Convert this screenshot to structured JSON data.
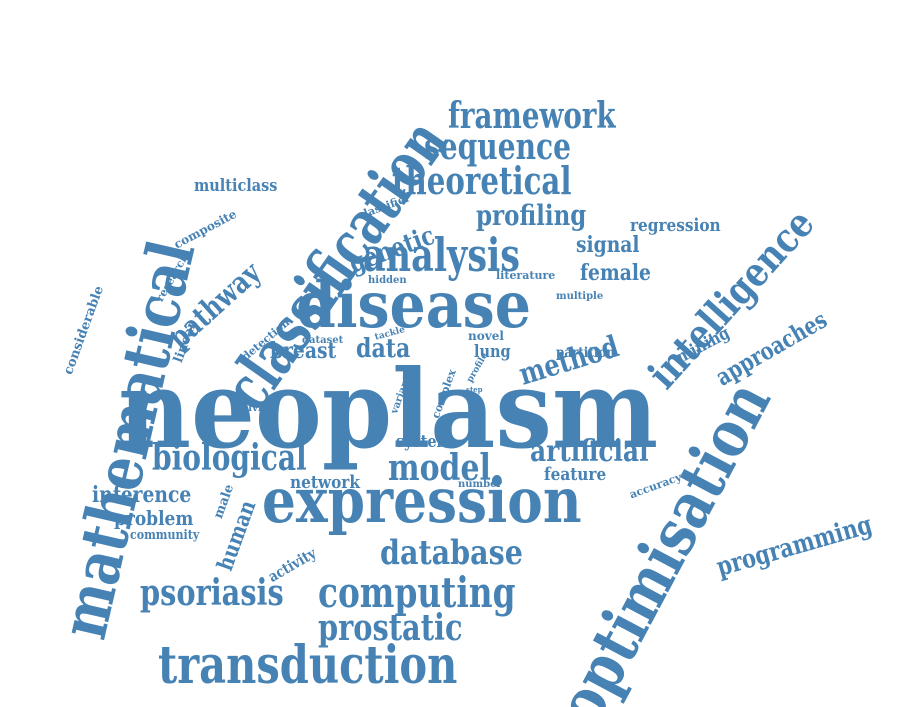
{
  "accent_color": "#4682b4",
  "words": [
    {
      "id": "neoplasm",
      "text": "neoplasm"
    },
    {
      "id": "expression",
      "text": "expression"
    },
    {
      "id": "classification",
      "text": "classification"
    },
    {
      "id": "mathematical",
      "text": "mathematical"
    },
    {
      "id": "optimisation",
      "text": "optimisation"
    },
    {
      "id": "disease",
      "text": "disease"
    },
    {
      "id": "transduction",
      "text": "transduction"
    },
    {
      "id": "intelligence",
      "text": "intelligence"
    },
    {
      "id": "analysis",
      "text": "analysis"
    },
    {
      "id": "theoretical",
      "text": "theoretical"
    },
    {
      "id": "framework",
      "text": "framework"
    },
    {
      "id": "sequence",
      "text": "sequence"
    },
    {
      "id": "computing",
      "text": "computing"
    },
    {
      "id": "psoriasis",
      "text": "psoriasis"
    },
    {
      "id": "prostatic",
      "text": "prostatic"
    },
    {
      "id": "database",
      "text": "database"
    },
    {
      "id": "biological",
      "text": "biological"
    },
    {
      "id": "model",
      "text": "model"
    },
    {
      "id": "artificial",
      "text": "artificial"
    },
    {
      "id": "method",
      "text": "method"
    },
    {
      "id": "profiling",
      "text": "profiling"
    },
    {
      "id": "genetic",
      "text": "genetic"
    },
    {
      "id": "pathway",
      "text": "pathway"
    },
    {
      "id": "programming",
      "text": "programming"
    },
    {
      "id": "approaches",
      "text": "approaches"
    },
    {
      "id": "female",
      "text": "female"
    },
    {
      "id": "signal",
      "text": "signal"
    },
    {
      "id": "regression",
      "text": "regression"
    },
    {
      "id": "multiclass",
      "text": "multiclass"
    },
    {
      "id": "breast",
      "text": "breast"
    },
    {
      "id": "data",
      "text": "data"
    },
    {
      "id": "lung",
      "text": "lung"
    },
    {
      "id": "system",
      "text": "system"
    },
    {
      "id": "network",
      "text": "network"
    },
    {
      "id": "feature",
      "text": "feature"
    },
    {
      "id": "inference",
      "text": "inference"
    },
    {
      "id": "problem",
      "text": "problem"
    },
    {
      "id": "human",
      "text": "human"
    },
    {
      "id": "community",
      "text": "community"
    },
    {
      "id": "male",
      "text": "male"
    },
    {
      "id": "activity",
      "text": "activity"
    },
    {
      "id": "mining",
      "text": "mining"
    },
    {
      "id": "partition",
      "text": "partition"
    },
    {
      "id": "composite",
      "text": "composite"
    },
    {
      "id": "research",
      "text": "research"
    },
    {
      "id": "considerable",
      "text": "considerable"
    },
    {
      "id": "linear",
      "text": "linear"
    },
    {
      "id": "detection",
      "text": "detection"
    },
    {
      "id": "classifier",
      "text": "classifier"
    },
    {
      "id": "hidden",
      "text": "hidden"
    },
    {
      "id": "literature",
      "text": "literature"
    },
    {
      "id": "multiple",
      "text": "multiple"
    },
    {
      "id": "dataset",
      "text": "dataset"
    },
    {
      "id": "tackle",
      "text": "tackle"
    },
    {
      "id": "novel",
      "text": "novel"
    },
    {
      "id": "solving",
      "text": "solving"
    },
    {
      "id": "variant",
      "text": "variant"
    },
    {
      "id": "complex",
      "text": "complex"
    },
    {
      "id": "profile",
      "text": "profile"
    },
    {
      "id": "step",
      "text": "step"
    },
    {
      "id": "number",
      "text": "number"
    },
    {
      "id": "accuracy",
      "text": "accuracy"
    }
  ]
}
